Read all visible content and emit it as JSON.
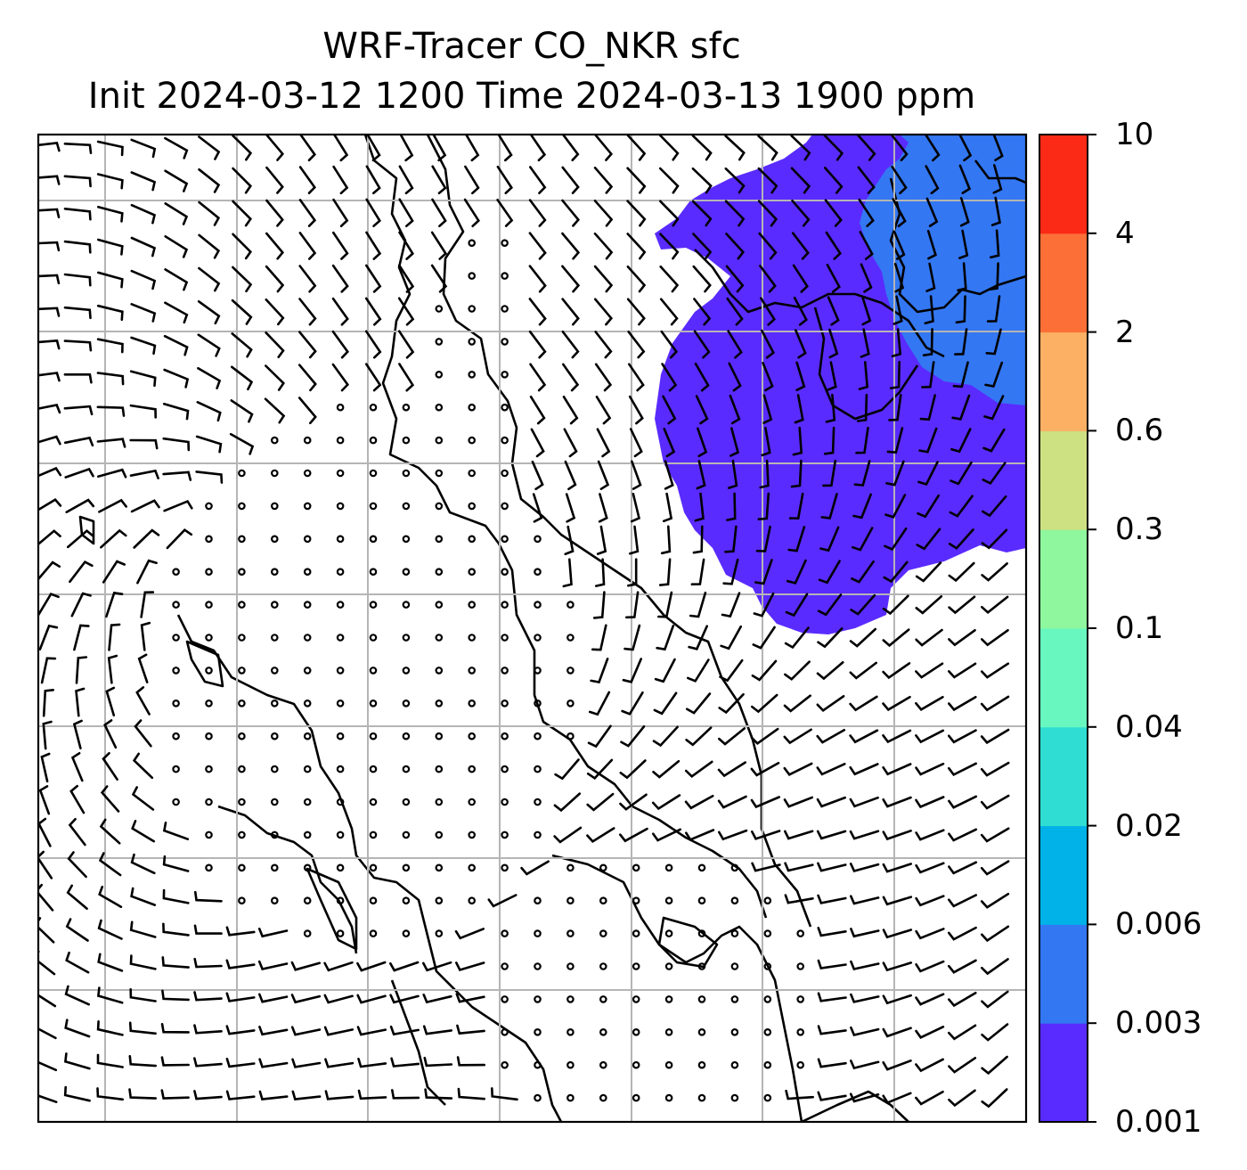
{
  "title": {
    "line1": "WRF-Tracer CO_NKR sfc",
    "line2": "Init 2024-03-12 1200 Time 2024-03-13 1900 ppm"
  },
  "colorbar": {
    "levels": [
      "0.001",
      "0.003",
      "0.006",
      "0.02",
      "0.04",
      "0.1",
      "0.3",
      "0.6",
      "2",
      "4",
      "10"
    ],
    "colors": [
      "#5a2bff",
      "#3377f2",
      "#00b2e8",
      "#2fddd2",
      "#67f7bf",
      "#8ff79e",
      "#cde082",
      "#fbb064",
      "#fc7037",
      "#fb2a16"
    ]
  },
  "map": {
    "field": "CO_NKR surface tracer concentration",
    "plume_regions": [
      {
        "level_range": "0.001-0.003",
        "color": "#5a2bff",
        "location": "north-east"
      },
      {
        "level_range": "0.003-0.006",
        "color": "#3377f2",
        "location": "north-east corner"
      }
    ],
    "wind_barbs": true,
    "gridlines": true,
    "coastlines": true
  }
}
